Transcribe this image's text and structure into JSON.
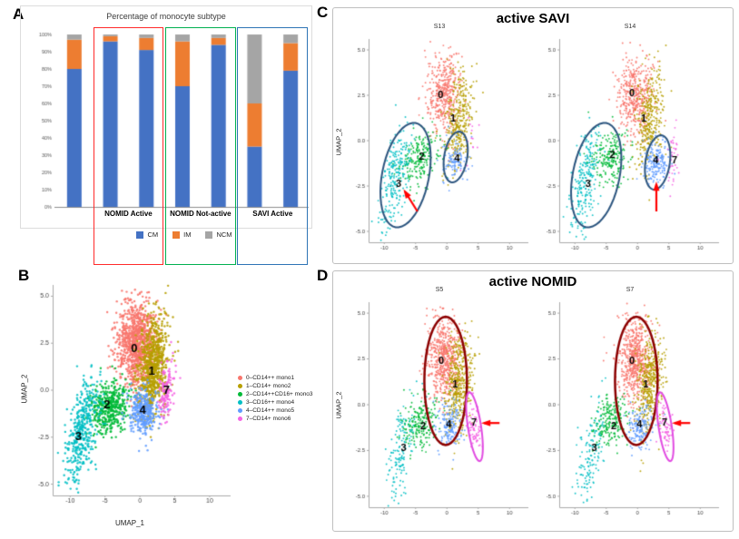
{
  "panels": {
    "a": {
      "label": "A"
    },
    "b": {
      "label": "B"
    },
    "c": {
      "label": "C"
    },
    "d": {
      "label": "D"
    }
  },
  "chart_data": [
    {
      "id": "monocyte_subtype_bar",
      "type": "bar",
      "stacked": true,
      "title": "Percentage of monocyte subtype",
      "ylim": [
        0,
        100
      ],
      "y_tick_labels": [
        "100%",
        "90%",
        "80%",
        "70%",
        "60%",
        "50%",
        "40%",
        "30%",
        "20%",
        "10%",
        "0%"
      ],
      "legend": [
        {
          "label": "CM",
          "color": "#4472C4"
        },
        {
          "label": "IM",
          "color": "#ED7D31"
        },
        {
          "label": "NCM",
          "color": "#A5A5A5"
        }
      ],
      "bars": [
        {
          "group": "",
          "values": {
            "CM": 80,
            "IM": 17,
            "NCM": 3
          }
        },
        {
          "group": "NOMID Active",
          "values": {
            "CM": 96,
            "IM": 3,
            "NCM": 1
          }
        },
        {
          "group": "NOMID Active",
          "values": {
            "CM": 91,
            "IM": 7,
            "NCM": 2
          }
        },
        {
          "group": "NOMID Not-active",
          "values": {
            "CM": 70,
            "IM": 26,
            "NCM": 4
          }
        },
        {
          "group": "NOMID Not-active",
          "values": {
            "CM": 94,
            "IM": 4,
            "NCM": 2
          }
        },
        {
          "group": "SAVI Active",
          "values": {
            "CM": 35,
            "IM": 25,
            "NCM": 40
          }
        },
        {
          "group": "SAVI Active",
          "values": {
            "CM": 79,
            "IM": 16,
            "NCM": 5
          }
        }
      ],
      "group_boxes": [
        {
          "label": "NOMID Active",
          "color": "#FF2A2A"
        },
        {
          "label": "NOMID Not-active",
          "color": "#00B050"
        },
        {
          "label": "SAVI Active",
          "color": "#2E74B5"
        }
      ]
    },
    {
      "id": "umap_all_monocytes",
      "type": "scatter",
      "xlabel": "UMAP_1",
      "ylabel": "UMAP_2",
      "xlim": [
        -12.5,
        13
      ],
      "ylim": [
        -5.6,
        5.6
      ],
      "x_ticks": [
        -10,
        -5,
        0,
        5,
        10
      ],
      "y_ticks": [
        -5.0,
        -2.5,
        0.0,
        2.5,
        5.0
      ],
      "clusters": [
        {
          "id": "0",
          "legend": "0–CD14++ mono1",
          "color": "#F8766D",
          "cx": -0.4,
          "cy": 2.5,
          "sx": 1.35,
          "sy": 1.15,
          "rot": 0,
          "n": 1000
        },
        {
          "id": "1",
          "legend": "1–CD14+ mono2",
          "color": "#B79F00",
          "cx": 1.9,
          "cy": 1.2,
          "sx": 1.0,
          "sy": 1.4,
          "rot": -25,
          "n": 800
        },
        {
          "id": "2",
          "legend": "2–CD14++CD16+ mono3",
          "color": "#00BA38",
          "cx": -4.3,
          "cy": -0.9,
          "sx": 1.5,
          "sy": 0.7,
          "rot": 10,
          "n": 430
        },
        {
          "id": "3",
          "legend": "3–CD16++ mono4",
          "color": "#00BFC4",
          "cx": -8.3,
          "cy": -2.2,
          "sx": 0.9,
          "sy": 1.6,
          "rot": -35,
          "n": 400
        },
        {
          "id": "4",
          "legend": "4–CD14++ mono5",
          "color": "#619CFF",
          "cx": 0.6,
          "cy": -1.1,
          "sx": 1.05,
          "sy": 0.6,
          "rot": 0,
          "n": 330
        },
        {
          "id": "7",
          "legend": "7–CD14+ mono6",
          "color": "#F564E3",
          "cx": 3.7,
          "cy": -0.1,
          "sx": 0.5,
          "sy": 0.8,
          "rot": -30,
          "n": 140
        }
      ],
      "plot": {
        "seed": 11,
        "point_r": 1.2,
        "label_size": 13,
        "tick_font": 7,
        "clusters": [
          {
            "ref": 0
          },
          {
            "ref": 1
          },
          {
            "ref": 2
          },
          {
            "ref": 3
          },
          {
            "ref": 4
          },
          {
            "ref": 5
          }
        ],
        "labels": [
          {
            "t": "0",
            "x": -0.8,
            "y": 2.2
          },
          {
            "t": "1",
            "x": 1.7,
            "y": 1.0
          },
          {
            "t": "2",
            "x": -4.7,
            "y": -0.8
          },
          {
            "t": "3",
            "x": -8.8,
            "y": -2.5
          },
          {
            "t": "4",
            "x": 0.4,
            "y": -1.1
          },
          {
            "t": "7",
            "x": 3.8,
            "y": 0.0
          }
        ]
      }
    },
    {
      "id": "active_savi_umaps",
      "type": "scatter",
      "title": "active SAVI",
      "ylabel": "UMAP_2",
      "plots": [
        {
          "name": "S13",
          "seed": 21,
          "point_r": 0.95,
          "label_size": 11,
          "tick_font": 6,
          "clusters": [
            {
              "ref": 0,
              "s": 0.42
            },
            {
              "ref": 1,
              "s": 0.42
            },
            {
              "ref": 2,
              "s": 0.5
            },
            {
              "ref": 3,
              "s": 0.6
            },
            {
              "ref": 4,
              "s": 0.32,
              "dx": 0.7
            },
            {
              "ref": 5,
              "s": 0.1
            }
          ],
          "labels": [
            {
              "t": "0",
              "x": -1.0,
              "y": 2.5
            },
            {
              "t": "1",
              "x": 1.0,
              "y": 1.2
            },
            {
              "t": "2",
              "x": -4.0,
              "y": -0.9
            },
            {
              "t": "3",
              "x": -7.7,
              "y": -2.4
            },
            {
              "t": "4",
              "x": 1.6,
              "y": -1.0
            }
          ],
          "ellipses": [
            {
              "cx": -6.6,
              "cy": -1.9,
              "rx": 4.2,
              "ry": 2.6,
              "rot": 22,
              "color": "#2B547E",
              "w": 2
            },
            {
              "cx": 1.4,
              "cy": -0.9,
              "rx": 2.0,
              "ry": 1.3,
              "rot": 20,
              "color": "#2B547E",
              "w": 2
            }
          ],
          "arrows": [
            {
              "x1": -4.7,
              "y1": -3.9,
              "x2": -6.7,
              "y2": -2.8,
              "color": "#FF0000"
            }
          ]
        },
        {
          "name": "S14",
          "seed": 22,
          "point_r": 0.95,
          "label_size": 11,
          "tick_font": 6,
          "clusters": [
            {
              "ref": 0,
              "s": 0.42
            },
            {
              "ref": 1,
              "s": 0.42
            },
            {
              "ref": 2,
              "s": 0.5
            },
            {
              "ref": 3,
              "s": 0.6
            },
            {
              "ref": 4,
              "s": 0.55,
              "dx": 2.3,
              "dy": -0.2
            },
            {
              "ref": 5,
              "s": 0.28,
              "dx": 1.9,
              "dy": -0.8
            }
          ],
          "labels": [
            {
              "t": "0",
              "x": -0.9,
              "y": 2.6
            },
            {
              "t": "1",
              "x": 1.0,
              "y": 1.2
            },
            {
              "t": "2",
              "x": -4.0,
              "y": -0.8
            },
            {
              "t": "3",
              "x": -7.9,
              "y": -2.4
            },
            {
              "t": "4",
              "x": 2.9,
              "y": -1.1
            },
            {
              "t": "7",
              "x": 5.9,
              "y": -1.1
            }
          ],
          "ellipses": [
            {
              "cx": -6.6,
              "cy": -1.9,
              "rx": 4.2,
              "ry": 2.6,
              "rot": 22,
              "color": "#2B547E",
              "w": 2
            },
            {
              "cx": 3.2,
              "cy": -1.2,
              "rx": 2.1,
              "ry": 1.4,
              "rot": 20,
              "color": "#2B547E",
              "w": 2
            }
          ],
          "arrows": [
            {
              "x1": 3.0,
              "y1": -3.9,
              "x2": 3.0,
              "y2": -2.4,
              "color": "#FF0000"
            }
          ]
        }
      ]
    },
    {
      "id": "active_nomid_umaps",
      "type": "scatter",
      "title": "active NOMID",
      "ylabel": "UMAP_2",
      "plots": [
        {
          "name": "S5",
          "seed": 31,
          "point_r": 0.95,
          "label_size": 11,
          "tick_font": 6,
          "clusters": [
            {
              "ref": 0,
              "s": 0.6
            },
            {
              "ref": 1,
              "s": 0.55
            },
            {
              "ref": 2,
              "s": 0.5
            },
            {
              "ref": 3,
              "s": 0.35,
              "dx": 0.9,
              "dy": -0.4
            },
            {
              "ref": 4,
              "s": 0.5
            },
            {
              "ref": 5,
              "s": 0.5,
              "dx": 0.6,
              "dy": -1.0,
              "rot": 38
            }
          ],
          "labels": [
            {
              "t": "0",
              "x": -0.9,
              "y": 2.4
            },
            {
              "t": "1",
              "x": 1.3,
              "y": 1.1
            },
            {
              "t": "2",
              "x": -3.8,
              "y": -1.2
            },
            {
              "t": "3",
              "x": -6.9,
              "y": -2.4
            },
            {
              "t": "4",
              "x": 0.3,
              "y": -1.1
            },
            {
              "t": "7",
              "x": 4.3,
              "y": -1.0
            }
          ],
          "ellipses": [
            {
              "cx": -0.2,
              "cy": 1.3,
              "rx": 3.4,
              "ry": 3.5,
              "rot": 0,
              "color": "#8B0000",
              "w": 2.5
            },
            {
              "cx": 4.4,
              "cy": -1.2,
              "rx": 2.1,
              "ry": 0.95,
              "rot": -60,
              "color": "#E14AE1",
              "w": 2
            }
          ],
          "arrows": [
            {
              "x1": 8.4,
              "y1": -1.0,
              "x2": 5.9,
              "y2": -1.0,
              "color": "#FF0000"
            }
          ]
        },
        {
          "name": "S7",
          "seed": 32,
          "point_r": 0.95,
          "label_size": 11,
          "tick_font": 6,
          "clusters": [
            {
              "ref": 0,
              "s": 0.6
            },
            {
              "ref": 1,
              "s": 0.55
            },
            {
              "ref": 2,
              "s": 0.5
            },
            {
              "ref": 3,
              "s": 0.35,
              "dx": 0.9,
              "dy": -0.4
            },
            {
              "ref": 4,
              "s": 0.5
            },
            {
              "ref": 5,
              "s": 0.5,
              "dx": 0.6,
              "dy": -1.0,
              "rot": 38
            }
          ],
          "labels": [
            {
              "t": "0",
              "x": -0.9,
              "y": 2.4
            },
            {
              "t": "1",
              "x": 1.3,
              "y": 1.1
            },
            {
              "t": "2",
              "x": -3.8,
              "y": -1.2
            },
            {
              "t": "3",
              "x": -6.9,
              "y": -2.4
            },
            {
              "t": "4",
              "x": 0.3,
              "y": -1.1
            },
            {
              "t": "7",
              "x": 4.3,
              "y": -1.0
            }
          ],
          "ellipses": [
            {
              "cx": -0.2,
              "cy": 1.3,
              "rx": 3.4,
              "ry": 3.5,
              "rot": 0,
              "color": "#8B0000",
              "w": 2.5
            },
            {
              "cx": 4.4,
              "cy": -1.2,
              "rx": 2.1,
              "ry": 0.95,
              "rot": -60,
              "color": "#E14AE1",
              "w": 2
            }
          ],
          "arrows": [
            {
              "x1": 8.4,
              "y1": -1.0,
              "x2": 5.9,
              "y2": -1.0,
              "color": "#FF0000"
            }
          ]
        }
      ]
    }
  ]
}
